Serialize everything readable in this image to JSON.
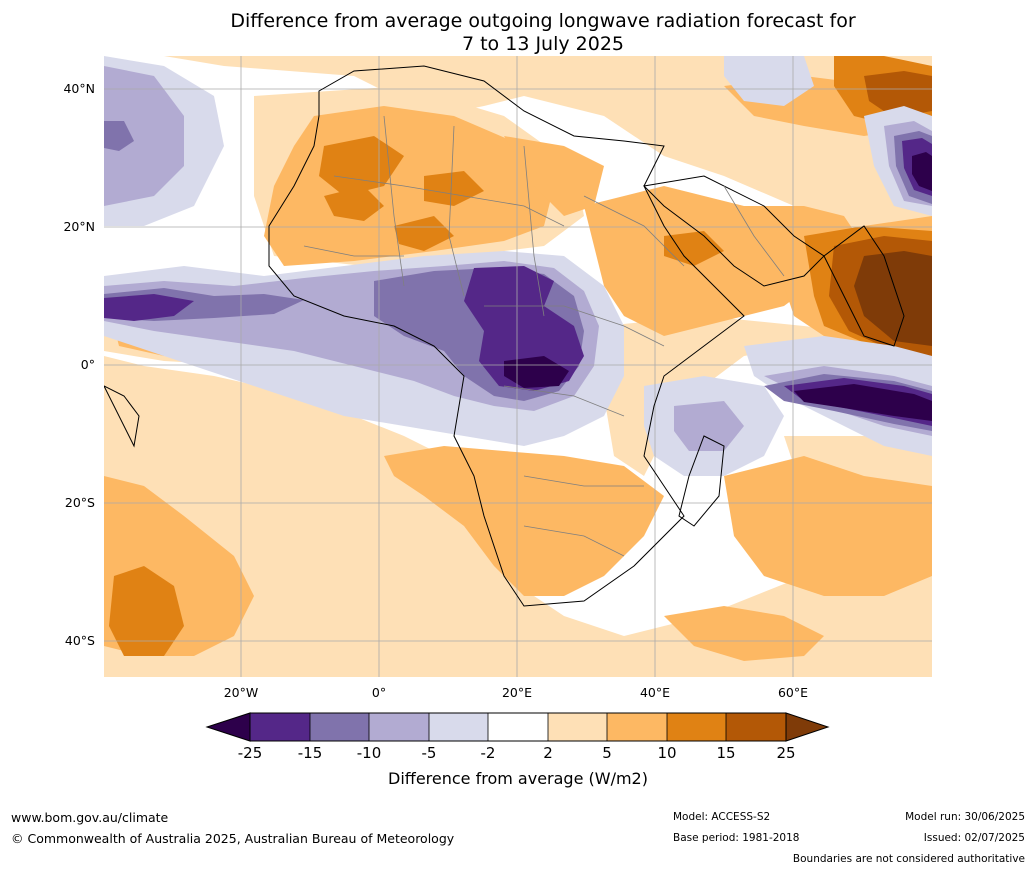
{
  "title_line1": "Difference from average outgoing longwave radiation forecast for",
  "title_line2": "7 to 13 July 2025",
  "lat_labels": [
    "40°N",
    "20°N",
    "0°",
    "20°S",
    "40°S"
  ],
  "lon_labels": [
    "20°W",
    "0°",
    "20°E",
    "40°E",
    "60°E"
  ],
  "colorbar": {
    "title": "Difference from average (W/m2)",
    "ticks": [
      "-25",
      "-15",
      "-10",
      "-5",
      "-2",
      "2",
      "5",
      "10",
      "15",
      "25"
    ],
    "colors": {
      "lt_neg25": "#2d004b",
      "neg25_neg15": "#542788",
      "neg15_neg10": "#8073ac",
      "neg10_neg5": "#b2abd2",
      "neg5_neg2": "#d8daeb",
      "neg2_2": "#ffffff",
      "2_5": "#fee0b6",
      "5_10": "#fdb863",
      "10_15": "#e08214",
      "15_25": "#b35806",
      "gt_25": "#7f3b08"
    }
  },
  "footer": {
    "website": "www.bom.gov.au/climate",
    "copyright": "© Commonwealth of Australia 2025, Australian Bureau of Meteorology",
    "model": "Model: ACCESS-S2",
    "base_period": "Base period: 1981-2018",
    "model_run": "Model run: 30/06/2025",
    "issued": "Issued: 02/07/2025",
    "disclaimer": "Boundaries are not considered authoritative"
  }
}
